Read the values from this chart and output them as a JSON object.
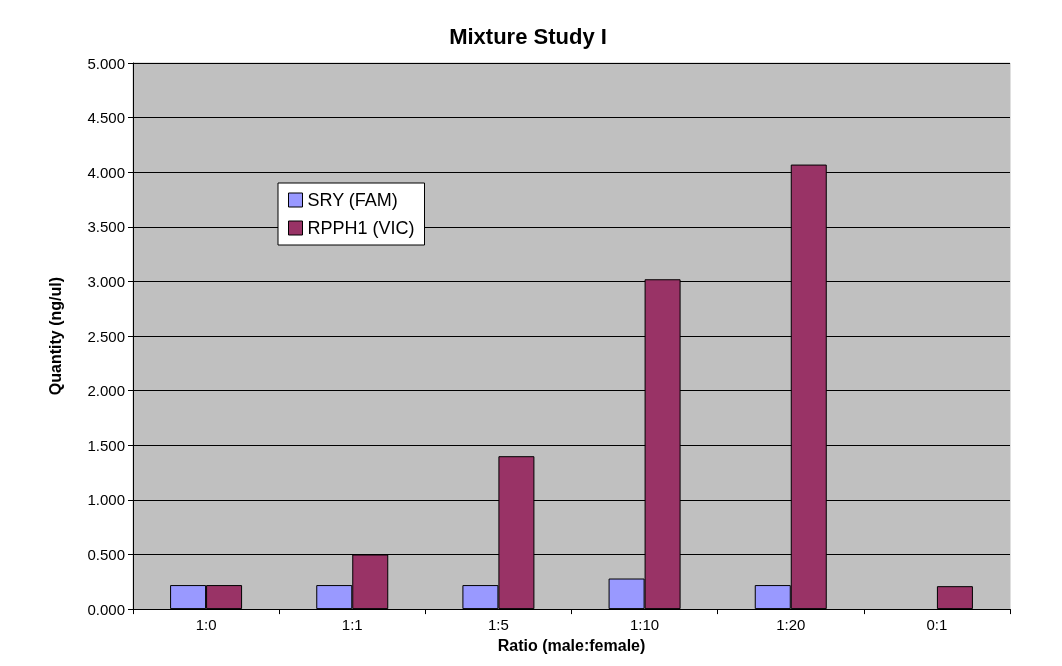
{
  "chart_data": {
    "type": "bar",
    "title": "Mixture Study I",
    "xlabel": "Ratio (male:female)",
    "ylabel": "Quantity (ng/ul)",
    "categories": [
      "1:0",
      "1:1",
      "1:5",
      "1:10",
      "1:20",
      "0:1"
    ],
    "series": [
      {
        "name": "SRY (FAM)",
        "color": "#9999ff",
        "values": [
          0.22,
          0.22,
          0.22,
          0.28,
          0.22,
          null
        ]
      },
      {
        "name": "RPPH1 (VIC)",
        "color": "#993366",
        "values": [
          0.22,
          0.5,
          1.4,
          3.02,
          4.07,
          0.21
        ]
      }
    ],
    "ylim": [
      0,
      5
    ],
    "yticks": [
      {
        "value": 0,
        "label": "0.000"
      },
      {
        "value": 0.5,
        "label": "0.500"
      },
      {
        "value": 1,
        "label": "1.000"
      },
      {
        "value": 1.5,
        "label": "1.500"
      },
      {
        "value": 2,
        "label": "2.000"
      },
      {
        "value": 2.5,
        "label": "2.500"
      },
      {
        "value": 3,
        "label": "3.000"
      },
      {
        "value": 3.5,
        "label": "3.500"
      },
      {
        "value": 4,
        "label": "4.000"
      },
      {
        "value": 4.5,
        "label": "4.500"
      },
      {
        "value": 5,
        "label": "5.000"
      }
    ],
    "grid": "y",
    "legend": "top left"
  }
}
